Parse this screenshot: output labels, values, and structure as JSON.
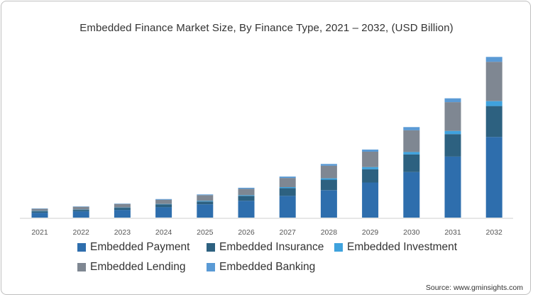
{
  "title": "Embedded Finance Market Size, By Finance Type, 2021 – 2032, (USD Billion)",
  "source": "Source: www.gminsights.com",
  "colors": {
    "Embedded Payment": "#2e6ead",
    "Embedded Insurance": "#2d6180",
    "Embedded Investment": "#3fa2dd",
    "Embedded Lending": "#7f8792",
    "Embedded Banking": "#5a9ad5"
  },
  "chart_data": {
    "type": "bar",
    "stacked": true,
    "title": "Embedded Finance Market Size, By Finance Type, 2021 – 2032, (USD Billion)",
    "xlabel": "",
    "ylabel": "",
    "grid": false,
    "legend_position": "bottom",
    "categories": [
      "2021",
      "2022",
      "2023",
      "2024",
      "2025",
      "2026",
      "2027",
      "2028",
      "2029",
      "2030",
      "2031",
      "2032"
    ],
    "series": [
      {
        "name": "Embedded Payment",
        "values": [
          7,
          9,
          11,
          15,
          19,
          24,
          31,
          39,
          50,
          65,
          87,
          115
        ]
      },
      {
        "name": "Embedded Insurance",
        "values": [
          2,
          2,
          3,
          4,
          4,
          7,
          11,
          15,
          19,
          25,
          32,
          44
        ]
      },
      {
        "name": "Embedded Investment",
        "values": [
          0.5,
          0.5,
          0.5,
          0.5,
          1,
          1,
          1.5,
          2,
          3,
          3.5,
          4.5,
          7
        ]
      },
      {
        "name": "Embedded Lending",
        "values": [
          3,
          4,
          5,
          6,
          8,
          9,
          13,
          18,
          22,
          31,
          41,
          56
        ]
      },
      {
        "name": "Embedded Banking",
        "values": [
          0.5,
          0.5,
          0.5,
          1,
          1,
          1.5,
          2,
          2.5,
          3,
          4.5,
          5.5,
          7
        ]
      }
    ]
  }
}
